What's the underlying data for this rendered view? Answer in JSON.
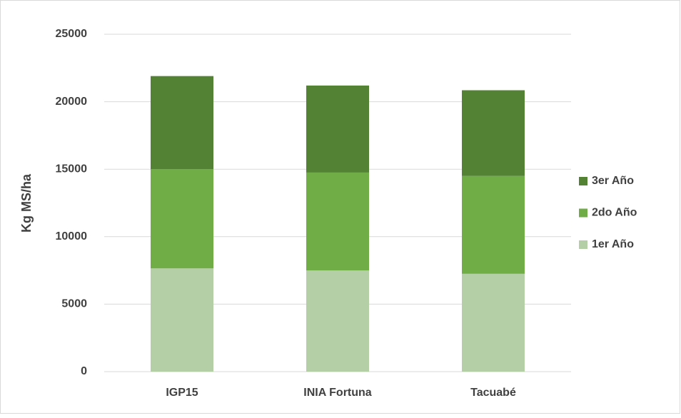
{
  "chart_data": {
    "type": "stacked_bar",
    "y_label": "Kg MS/ha",
    "categories": [
      "IGP15",
      "INIA Fortuna",
      "Tacuabé"
    ],
    "series": [
      {
        "name": "1er Año",
        "color": "#b4cea6",
        "values": [
          7650,
          7500,
          7250
        ]
      },
      {
        "name": "2do Año",
        "color": "#70ad47",
        "values": [
          7350,
          7250,
          7250
        ]
      },
      {
        "name": "3er Año",
        "color": "#548235",
        "values": [
          6900,
          6450,
          6350
        ]
      }
    ],
    "ylim": [
      0,
      25000
    ],
    "yticks": [
      0,
      5000,
      10000,
      15000,
      20000,
      25000
    ],
    "grid": true,
    "legend": "right"
  }
}
